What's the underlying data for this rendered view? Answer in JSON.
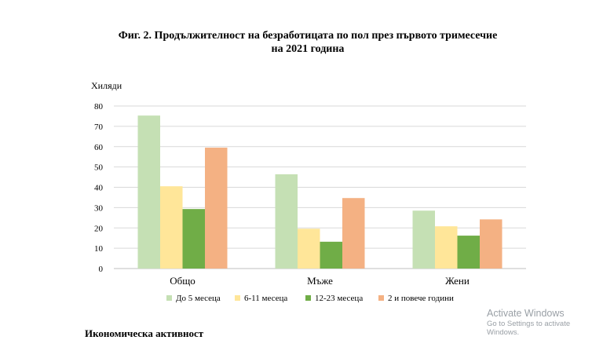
{
  "chart_data": {
    "type": "bar",
    "title_line1": "Фиг. 2. Продължителност на безработицата по пол  през първото тримесечие",
    "title_line2": "на 2021 година",
    "ylabel": "Хиляди",
    "ylim": [
      0,
      80
    ],
    "yticks": [
      0,
      10,
      20,
      30,
      40,
      50,
      60,
      70,
      80
    ],
    "grid": true,
    "legend_position": "bottom",
    "categories": [
      "Общо",
      "Мъже",
      "Жени"
    ],
    "series": [
      {
        "name": "До 5 месеца",
        "color": "#c5e0b4",
        "values": [
          75.3,
          46.4,
          28.5
        ]
      },
      {
        "name": "6-11 месеца",
        "color": "#ffe699",
        "values": [
          40.5,
          19.6,
          20.8
        ]
      },
      {
        "name": "12-23 месеца",
        "color": "#70ad47",
        "values": [
          29.3,
          13.2,
          16.2
        ]
      },
      {
        "name": "2 и повече години",
        "color": "#f4b183",
        "values": [
          59.5,
          34.7,
          24.2
        ]
      }
    ]
  },
  "overlay": {
    "watermark_line1": "Activate Windows",
    "watermark_line2": "Go to Settings to activate Windows.",
    "cut_text": "Икономическа активност"
  }
}
